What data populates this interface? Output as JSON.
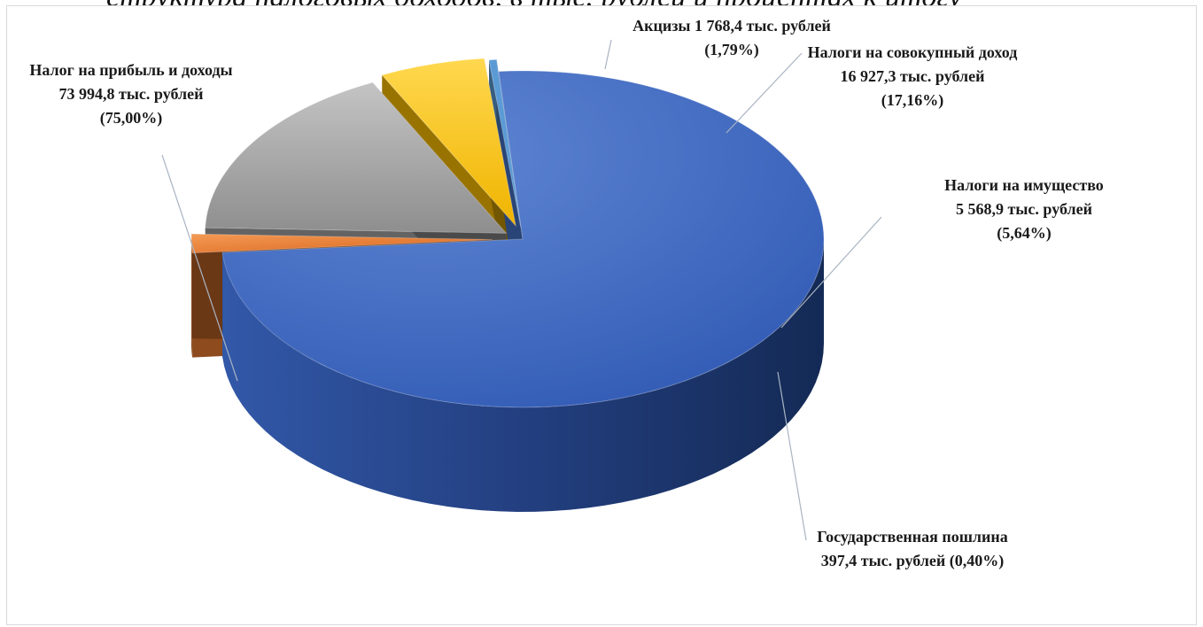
{
  "page": {
    "top_text": "структура налоговых доходов, в тыс. рублей и процентах к итогу"
  },
  "chart_data": {
    "type": "pie",
    "title": "",
    "unit": "тыс. рублей",
    "slices": [
      {
        "name": "Налог на прибыль и доходы",
        "value": 73994.8,
        "percent": 75.0,
        "color": "#4472c4",
        "label_lines": [
          "Налог на прибыль и доходы",
          "73 994,8 тыс. рублей",
          "(75,00%)"
        ]
      },
      {
        "name": "Акцизы",
        "value": 1768.4,
        "percent": 1.79,
        "color": "#ed7d31",
        "label_lines": [
          "Акцизы 1 768,4 тыс. рублей",
          "(1,79%)"
        ]
      },
      {
        "name": "Налоги на совокупный доход",
        "value": 16927.3,
        "percent": 17.16,
        "color": "#a5a5a5",
        "label_lines": [
          "Налоги на совокупный доход",
          "16 927,3 тыс. рублей",
          "(17,16%)"
        ]
      },
      {
        "name": "Налоги на имущество",
        "value": 5568.9,
        "percent": 5.64,
        "color": "#ffc000",
        "label_lines": [
          "Налоги на имущество",
          "5 568,9 тыс. рублей",
          "(5,64%)"
        ]
      },
      {
        "name": "Государственная пошлина",
        "value": 397.4,
        "percent": 0.4,
        "color": "#5b9bd5",
        "label_lines": [
          "Государственная пошлина",
          "397,4 тыс. рублей (0,40%)"
        ]
      }
    ]
  }
}
